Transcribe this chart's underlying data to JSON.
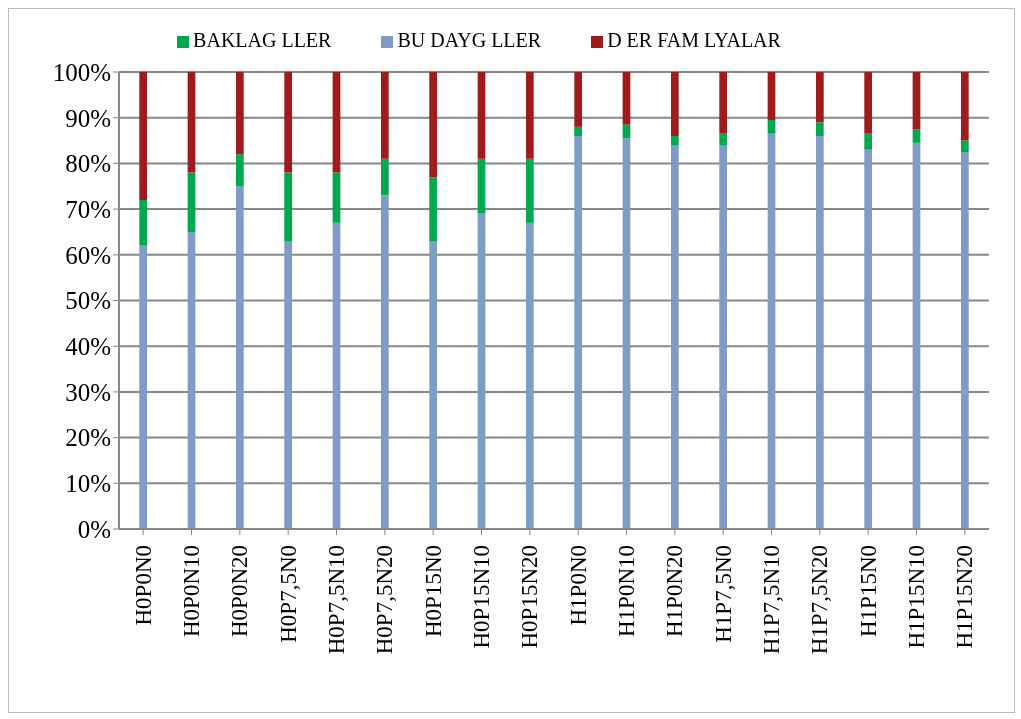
{
  "chart_data": {
    "type": "bar",
    "stacked": true,
    "legend": "top",
    "grid": "y",
    "categories": [
      "H0P0N0",
      "H0P0N10",
      "H0P0N20",
      "H0P7,5N0",
      "H0P7,5N10",
      "H0P7,5N20",
      "H0P15N0",
      "H0P15N10",
      "H0P15N20",
      "H1P0N0",
      "H1P0N10",
      "H1P0N20",
      "H1P7,5N0",
      "H1P7,5N10",
      "H1P7,5N20",
      "H1P15N0",
      "H1P15N10",
      "H1P15N20"
    ],
    "series": [
      {
        "name": "BU   DAYG LLER",
        "color": "#7f9bc6",
        "values": [
          62,
          65,
          75,
          63,
          67,
          73,
          63,
          69,
          67,
          86,
          85.5,
          84,
          84,
          86.5,
          86,
          83,
          84.5,
          82.5
        ]
      },
      {
        "name": "BAKLAG LLER",
        "color": "#00a850",
        "values": [
          10,
          13,
          7,
          15,
          11,
          8,
          14,
          12,
          14,
          2,
          3,
          2,
          2.5,
          3,
          3,
          3.5,
          3,
          2.5
        ]
      },
      {
        "name": "D    ER FAM LYALAR",
        "color": "#a01c1c",
        "values": [
          28,
          22,
          18,
          22,
          22,
          19,
          23,
          19,
          19,
          12,
          11.5,
          14,
          13.5,
          10.5,
          11,
          13.5,
          12.5,
          15
        ]
      }
    ],
    "ylim": [
      0,
      100
    ],
    "yticks": [
      {
        "value": 0,
        "label": "0%"
      },
      {
        "value": 10,
        "label": "10%"
      },
      {
        "value": 20,
        "label": "20%"
      },
      {
        "value": 30,
        "label": "30%"
      },
      {
        "value": 40,
        "label": "40%"
      },
      {
        "value": 50,
        "label": "50%"
      },
      {
        "value": 60,
        "label": "60%"
      },
      {
        "value": 70,
        "label": "70%"
      },
      {
        "value": 80,
        "label": "80%"
      },
      {
        "value": 90,
        "label": "90%"
      },
      {
        "value": 100,
        "label": "100%"
      }
    ]
  }
}
